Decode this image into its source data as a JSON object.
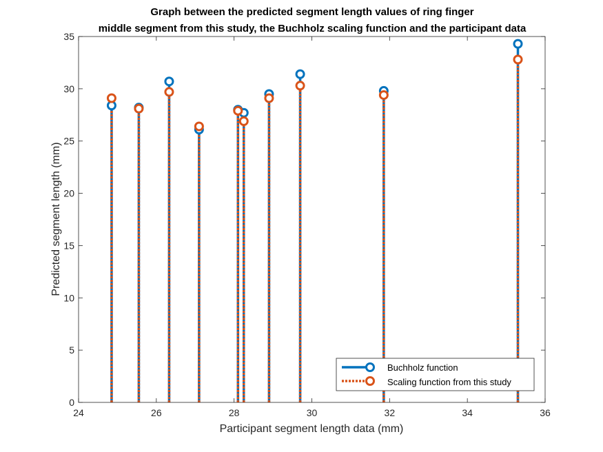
{
  "chart_data": {
    "type": "stem",
    "title_lines": [
      "Graph between the predicted segment length values of ring finger",
      "middle segment from this study, the Buchholz scaling function and the participant data"
    ],
    "xlabel": "Participant segment length data (mm)",
    "ylabel": "Predicted segment length (mm)",
    "xlim": [
      24,
      36
    ],
    "ylim": [
      0,
      35
    ],
    "xticks": [
      24,
      26,
      28,
      30,
      32,
      34,
      36
    ],
    "yticks": [
      0,
      5,
      10,
      15,
      20,
      25,
      30,
      35
    ],
    "grid": false,
    "legend_position": "bottom-right",
    "x": [
      24.85,
      25.55,
      26.33,
      27.1,
      28.1,
      28.25,
      28.9,
      29.7,
      31.85,
      35.3
    ],
    "series": [
      {
        "name": "Buchholz function",
        "color": "#0072BD",
        "line_style": "solid",
        "values": [
          28.4,
          28.2,
          30.7,
          26.1,
          28.0,
          27.7,
          29.5,
          31.4,
          29.8,
          34.3
        ]
      },
      {
        "name": "Scaling function from this study",
        "color": "#D95319",
        "line_style": "dotted",
        "values": [
          29.1,
          28.1,
          29.7,
          26.4,
          27.9,
          26.9,
          29.1,
          30.3,
          29.4,
          32.8
        ]
      }
    ]
  }
}
